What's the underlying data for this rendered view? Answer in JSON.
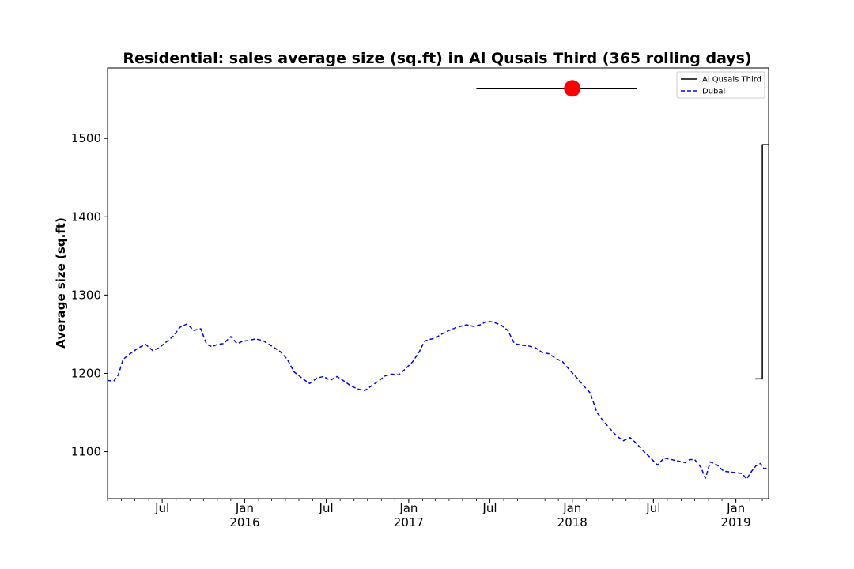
{
  "chart_data": {
    "type": "line",
    "title": "Residential: sales average size (sq.ft) in Al Qusais Third (365 rolling days)",
    "xlabel": "",
    "ylabel": "Average size (sq.ft)",
    "ylim": [
      1040,
      1590
    ],
    "xlim": [
      "2015-03-01",
      "2019-03-15"
    ],
    "grid": false,
    "legend_position": "top-right",
    "y_ticks": [
      1100,
      1200,
      1300,
      1400,
      1500
    ],
    "x_ticks": [
      {
        "date": "2015-07-01",
        "label": "Jul",
        "sub": ""
      },
      {
        "date": "2016-01-01",
        "label": "Jan",
        "sub": "2016"
      },
      {
        "date": "2016-07-01",
        "label": "Jul",
        "sub": ""
      },
      {
        "date": "2017-01-01",
        "label": "Jan",
        "sub": "2017"
      },
      {
        "date": "2017-07-01",
        "label": "Jul",
        "sub": ""
      },
      {
        "date": "2018-01-01",
        "label": "Jan",
        "sub": "2018"
      },
      {
        "date": "2018-07-01",
        "label": "Jul",
        "sub": ""
      },
      {
        "date": "2019-01-01",
        "label": "Jan",
        "sub": "2019"
      }
    ],
    "series": [
      {
        "name": "Al Qusais Third",
        "color": "#000000",
        "style": "solid",
        "step": true,
        "x": [
          "2019-02-13",
          "2019-03-01",
          "2019-03-01",
          "2019-03-15"
        ],
        "y": [
          1193,
          1193,
          1492,
          1492
        ]
      },
      {
        "name": "Dubai",
        "color": "#0000ff",
        "style": "dashed",
        "step": false,
        "x": [
          "2015-03-01",
          "2015-03-15",
          "2015-03-25",
          "2015-04-05",
          "2015-04-20",
          "2015-05-10",
          "2015-05-25",
          "2015-06-10",
          "2015-06-25",
          "2015-07-10",
          "2015-07-25",
          "2015-08-10",
          "2015-08-25",
          "2015-09-10",
          "2015-09-25",
          "2015-10-08",
          "2015-10-20",
          "2015-11-01",
          "2015-11-15",
          "2015-12-01",
          "2015-12-15",
          "2015-12-28",
          "2016-01-10",
          "2016-01-25",
          "2016-02-10",
          "2016-03-01",
          "2016-03-20",
          "2016-04-05",
          "2016-04-20",
          "2016-05-10",
          "2016-05-25",
          "2016-06-10",
          "2016-06-25",
          "2016-07-10",
          "2016-07-25",
          "2016-08-10",
          "2016-08-25",
          "2016-09-10",
          "2016-09-25",
          "2016-10-10",
          "2016-10-25",
          "2016-11-10",
          "2016-11-25",
          "2016-12-10",
          "2016-12-25",
          "2017-01-10",
          "2017-01-25",
          "2017-02-05",
          "2017-02-15",
          "2017-03-01",
          "2017-03-15",
          "2017-04-01",
          "2017-04-20",
          "2017-05-10",
          "2017-05-25",
          "2017-06-10",
          "2017-06-25",
          "2017-07-10",
          "2017-07-25",
          "2017-08-10",
          "2017-08-25",
          "2017-09-10",
          "2017-09-25",
          "2017-10-10",
          "2017-10-25",
          "2017-11-10",
          "2017-11-25",
          "2017-12-10",
          "2017-12-25",
          "2018-01-10",
          "2018-01-25",
          "2018-02-10",
          "2018-02-25",
          "2018-03-10",
          "2018-03-25",
          "2018-04-10",
          "2018-04-25",
          "2018-05-10",
          "2018-05-25",
          "2018-06-10",
          "2018-06-25",
          "2018-07-10",
          "2018-07-25",
          "2018-08-10",
          "2018-08-25",
          "2018-09-10",
          "2018-09-20",
          "2018-10-01",
          "2018-10-15",
          "2018-10-25",
          "2018-11-05",
          "2018-11-20",
          "2018-12-05",
          "2018-12-20",
          "2019-01-05",
          "2019-01-15",
          "2019-01-25",
          "2019-02-05",
          "2019-02-15",
          "2019-02-25",
          "2019-03-05",
          "2019-03-15"
        ],
        "y": [
          1191,
          1190,
          1198,
          1218,
          1225,
          1233,
          1237,
          1229,
          1233,
          1240,
          1247,
          1259,
          1263,
          1255,
          1257,
          1237,
          1234,
          1237,
          1238,
          1247,
          1238,
          1241,
          1242,
          1244,
          1242,
          1235,
          1228,
          1218,
          1202,
          1193,
          1187,
          1194,
          1196,
          1191,
          1196,
          1190,
          1184,
          1180,
          1178,
          1184,
          1190,
          1197,
          1199,
          1198,
          1206,
          1215,
          1228,
          1241,
          1243,
          1245,
          1250,
          1255,
          1259,
          1262,
          1260,
          1262,
          1267,
          1265,
          1262,
          1255,
          1238,
          1236,
          1235,
          1233,
          1227,
          1225,
          1219,
          1215,
          1205,
          1195,
          1185,
          1175,
          1150,
          1140,
          1130,
          1120,
          1114,
          1118,
          1110,
          1100,
          1092,
          1083,
          1092,
          1090,
          1088,
          1086,
          1090,
          1090,
          1080,
          1066,
          1087,
          1083,
          1075,
          1074,
          1073,
          1072,
          1065,
          1075,
          1082,
          1085,
          1078,
          1080
        ]
      }
    ],
    "annotations": [
      {
        "type": "errorbar-marker",
        "x": "2018-01-01",
        "y": 1564,
        "xerr_from": "2017-06-01",
        "xerr_to": "2018-05-25",
        "marker_color": "#ff0000",
        "line_color": "#000000"
      }
    ]
  }
}
